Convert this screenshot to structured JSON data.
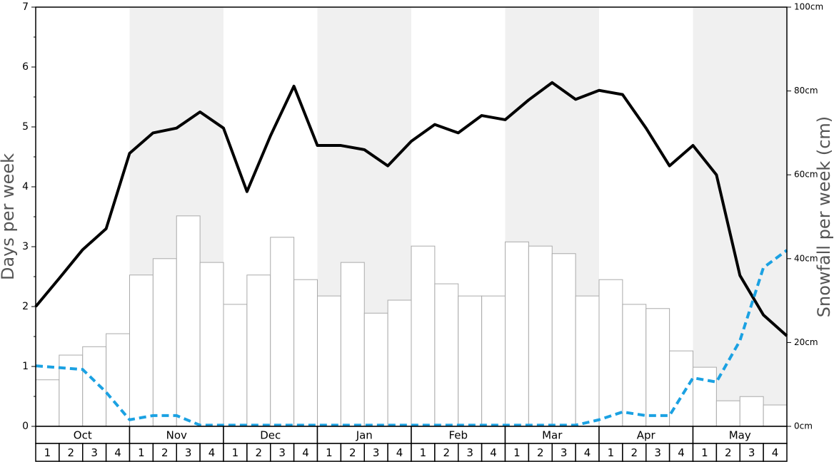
{
  "chart_data": {
    "type": "bar",
    "y_label": "Days per week",
    "y2_label": "Snowfall per week (cm)",
    "months": [
      "Oct",
      "Nov",
      "Dec",
      "Jan",
      "Feb",
      "Mar",
      "Apr",
      "May"
    ],
    "categories": [
      "1",
      "2",
      "3",
      "4",
      "1",
      "2",
      "3",
      "4",
      "1",
      "2",
      "3",
      "4",
      "1",
      "2",
      "3",
      "4",
      "1",
      "2",
      "3",
      "4",
      "1",
      "2",
      "3",
      "4",
      "1",
      "2",
      "3",
      "4",
      "1",
      "2",
      "3",
      "4"
    ],
    "xlim": [
      0,
      32
    ],
    "ylim": [
      0,
      7
    ],
    "yticks": [
      0,
      1,
      2,
      3,
      4,
      5,
      6,
      7
    ],
    "yminorticks": [
      0.5,
      1.5,
      2.5,
      3.5,
      4.5,
      5.5,
      6.5
    ],
    "y2lim": [
      0,
      100
    ],
    "y2ticks": [
      {
        "value": 0,
        "label": "0cm"
      },
      {
        "value": 20,
        "label": "20cm"
      },
      {
        "value": 40,
        "label": "40cm"
      },
      {
        "value": 60,
        "label": "60cm"
      },
      {
        "value": 80,
        "label": "80cm"
      },
      {
        "value": 100,
        "label": "100cm"
      }
    ],
    "series": [
      {
        "type": "bar",
        "axis": "y2",
        "color": "#ffffff",
        "edge_color": "#aaaaaa",
        "values": [
          11.1,
          17.0,
          19.0,
          22.1,
          36.1,
          40.0,
          50.2,
          39.1,
          29.1,
          36.1,
          45.1,
          35.0,
          31.1,
          39.1,
          27.0,
          30.1,
          43.0,
          34.0,
          31.1,
          31.1,
          44.0,
          43.0,
          41.2,
          31.1,
          35.0,
          29.1,
          28.1,
          18.0,
          14.1,
          6.1,
          7.1,
          5.1
        ]
      },
      {
        "type": "line",
        "color": "#000000",
        "dashed": false,
        "x": [
          0,
          1,
          2,
          3,
          4,
          5,
          6,
          7,
          8,
          9,
          10,
          11,
          12,
          13,
          14,
          15,
          16,
          17,
          18,
          19,
          20,
          21,
          22,
          23,
          24,
          25,
          26,
          27,
          28,
          29,
          30,
          31,
          32
        ],
        "values": [
          2.0,
          2.47,
          2.95,
          3.3,
          4.56,
          4.9,
          4.98,
          5.25,
          4.98,
          3.92,
          4.85,
          5.68,
          4.69,
          4.69,
          4.62,
          4.35,
          4.76,
          5.04,
          4.9,
          5.19,
          5.12,
          5.45,
          5.74,
          5.46,
          5.61,
          5.54,
          4.98,
          4.35,
          4.69,
          4.2,
          2.52,
          1.86,
          1.51
        ]
      },
      {
        "type": "line",
        "color": "#1ba1e2",
        "dashed": true,
        "x": [
          0,
          1,
          2,
          3,
          4,
          5,
          6,
          7,
          8,
          9,
          10,
          11,
          12,
          13,
          14,
          15,
          16,
          17,
          18,
          19,
          20,
          21,
          22,
          23,
          24,
          25,
          26,
          27,
          28,
          29,
          30,
          31,
          32
        ],
        "values": [
          1.01,
          0.98,
          0.95,
          0.57,
          0.11,
          0.18,
          0.18,
          0.02,
          0.02,
          0.02,
          0.02,
          0.02,
          0.02,
          0.02,
          0.02,
          0.02,
          0.02,
          0.02,
          0.02,
          0.02,
          0.02,
          0.02,
          0.02,
          0.02,
          0.11,
          0.24,
          0.18,
          0.18,
          0.81,
          0.74,
          1.43,
          2.65,
          2.94
        ]
      }
    ]
  }
}
